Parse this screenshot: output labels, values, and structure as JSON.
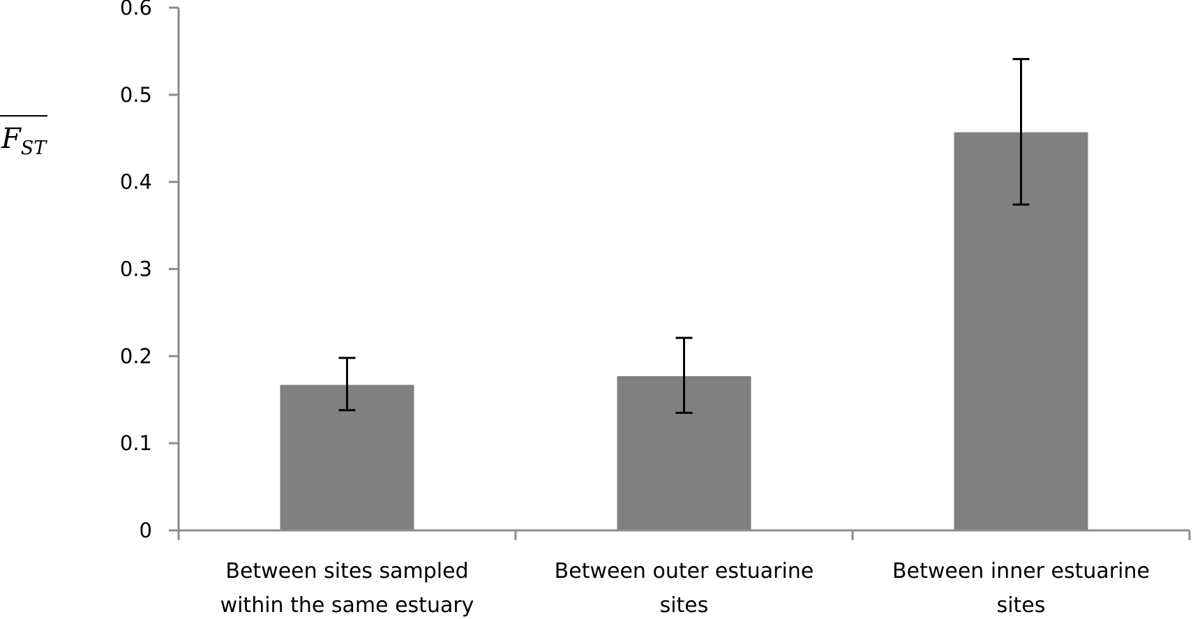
{
  "chart_data": {
    "type": "bar",
    "categories": [
      [
        "Between sites sampled",
        "within the same estuary"
      ],
      [
        "Between outer estuarine",
        "sites"
      ],
      [
        "Between inner estuarine",
        "sites"
      ]
    ],
    "values": [
      0.167,
      0.177,
      0.457
    ],
    "error_bars": {
      "lower": [
        0.138,
        0.135,
        0.374
      ],
      "upper": [
        0.198,
        0.221,
        0.541
      ]
    },
    "ylabel": {
      "main": "F",
      "subscript": "ST",
      "overline": true
    },
    "ylim": [
      0,
      0.6
    ],
    "yticks": [
      "0",
      "0.1",
      "0.2",
      "0.3",
      "0.4",
      "0.5",
      "0.6"
    ],
    "ytick_values": [
      0,
      0.1,
      0.2,
      0.3,
      0.4,
      0.5,
      0.6
    ],
    "grid": false,
    "legend": "none",
    "colors": {
      "bar": "#808080",
      "axis": "#8c8c8c",
      "error_bar": "#000000"
    }
  }
}
